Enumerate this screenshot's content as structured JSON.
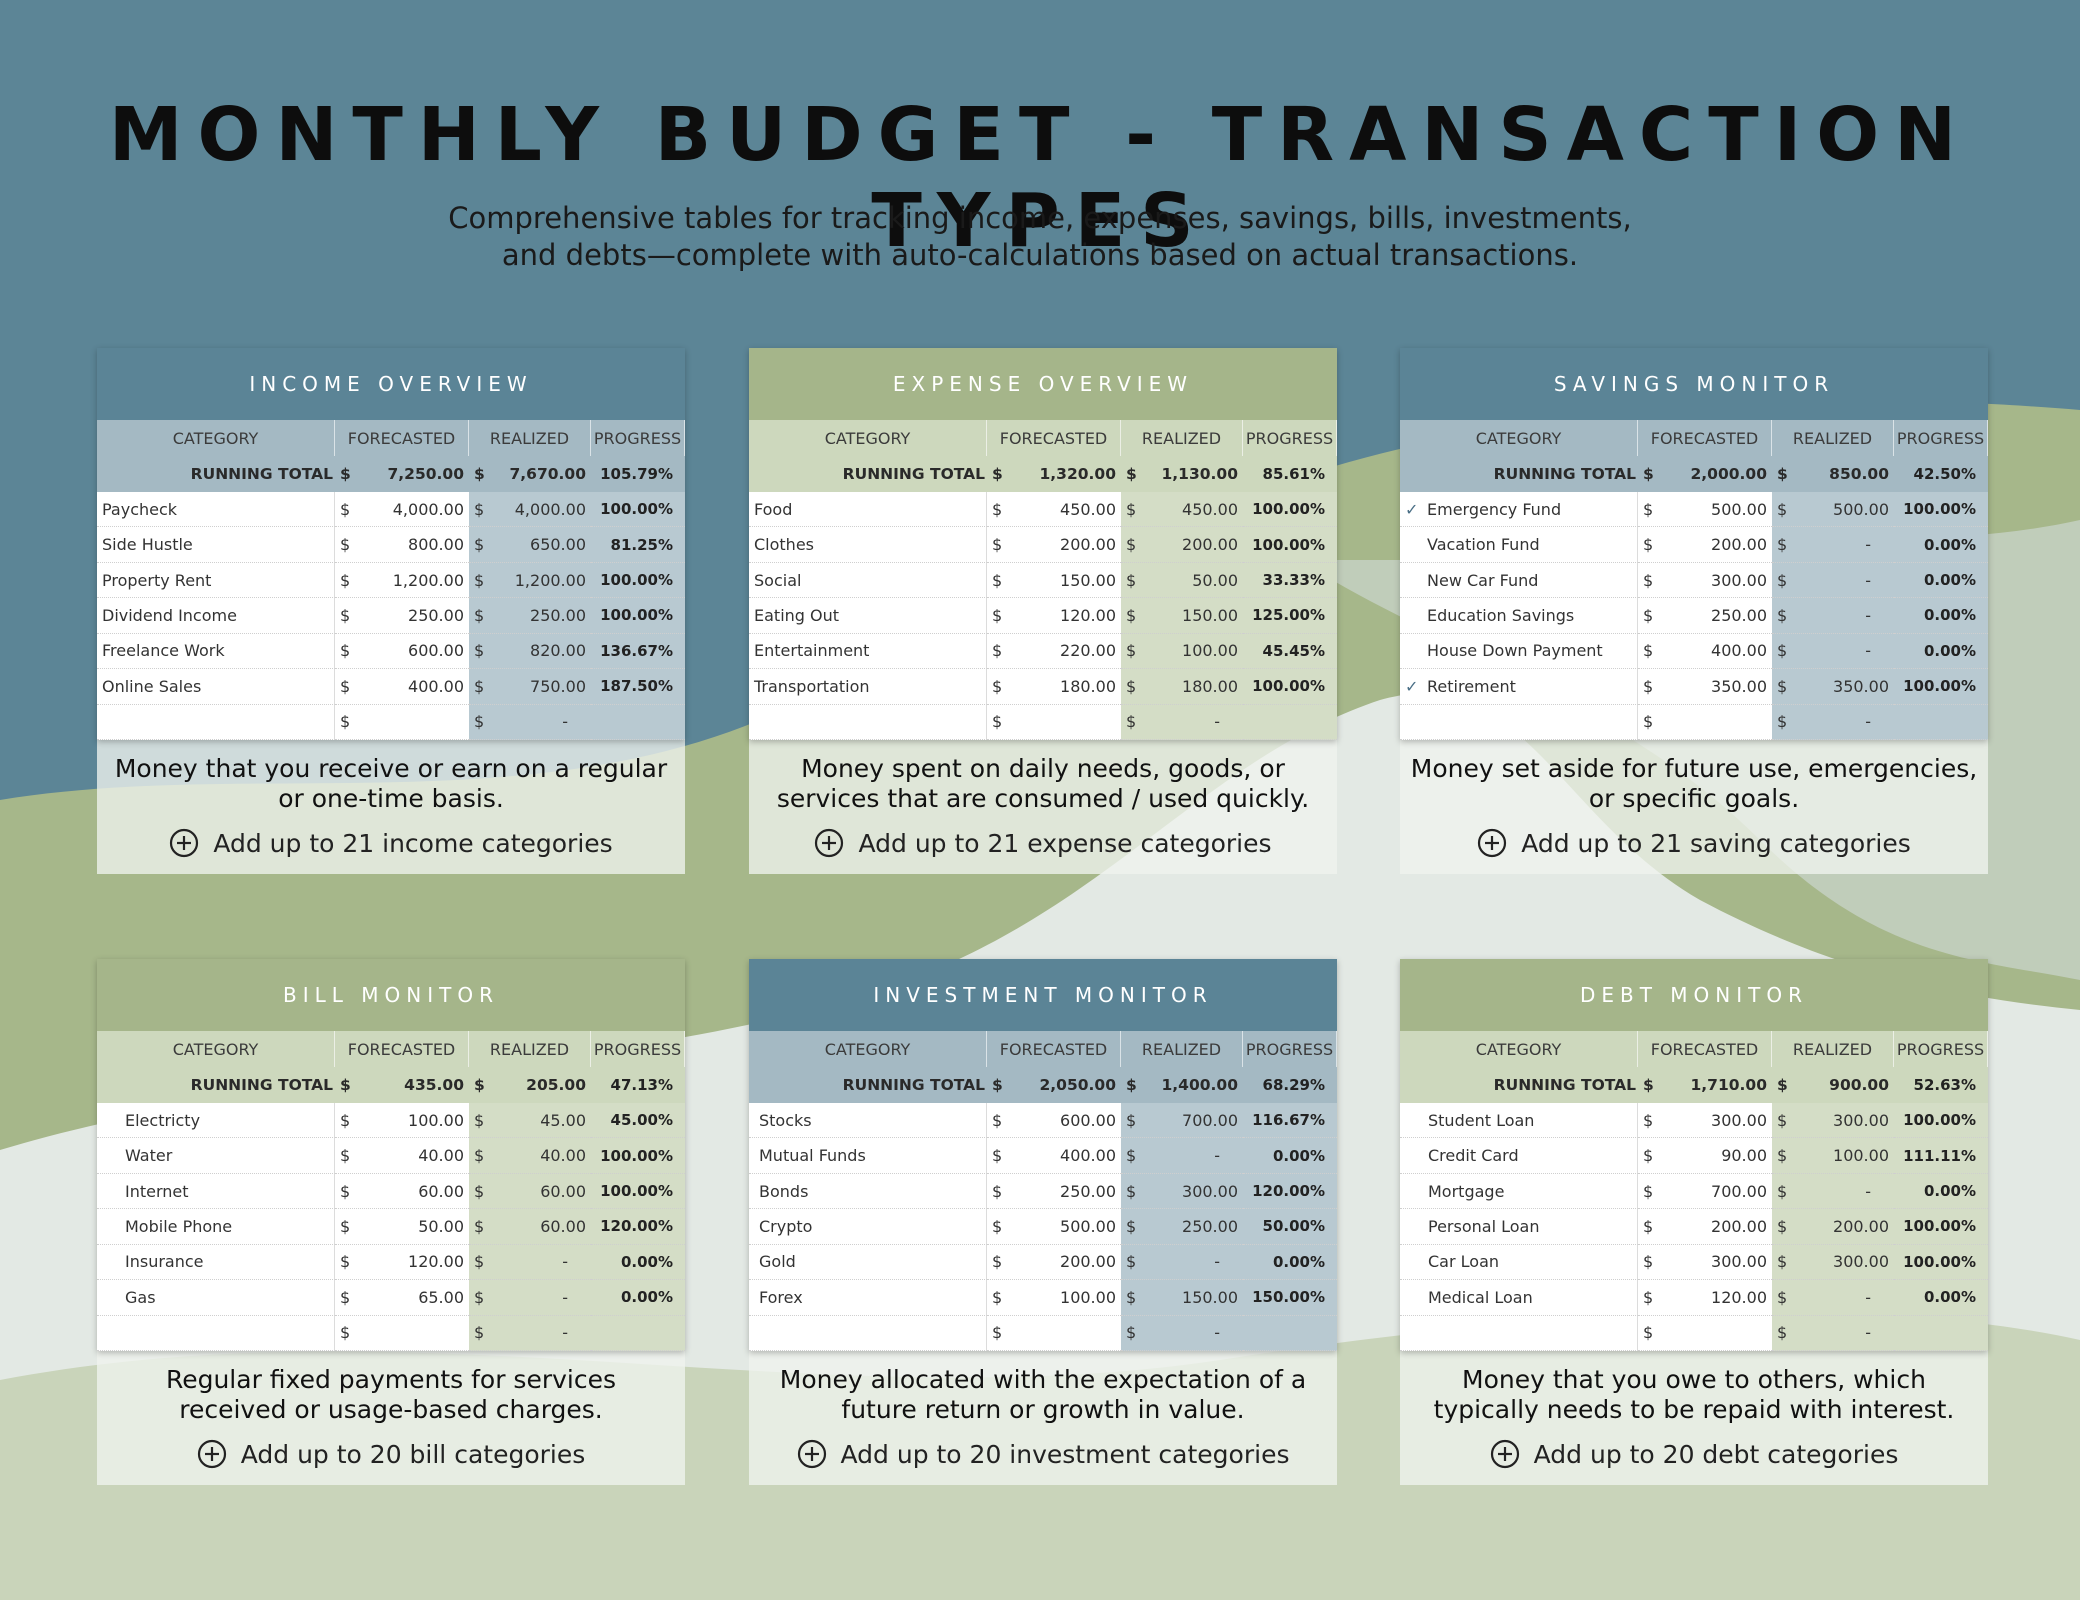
{
  "title": "MONTHLY BUDGET - TRANSACTION TYPES",
  "subtitle": [
    "Comprehensive tables for tracking income, expenses, savings, bills, investments,",
    "and debts—complete with auto-calculations based on actual transactions."
  ],
  "colors": {
    "background_top": "#5c8596",
    "green_wave": "#a6b78a",
    "light_wave": "#dfe5dc",
    "blue_header": "#5b8496",
    "green_header": "#a5b58a"
  },
  "headers": [
    "CATEGORY",
    "FORECASTED",
    "REALIZED",
    "PROGRESS"
  ],
  "running_total_label": "RUNNING TOTAL",
  "currency": "$",
  "empty_realized": "-",
  "add_icon": "circle-plus-icon",
  "check_icon": "check-icon",
  "panels": [
    {
      "id": "income",
      "theme": "blue",
      "title": "INCOME OVERVIEW",
      "total": {
        "forecasted": "7,250.00",
        "realized": "7,670.00",
        "progress": "105.79%"
      },
      "rows": [
        {
          "category": "Paycheck",
          "forecasted": "4,000.00",
          "realized": "4,000.00",
          "progress": "100.00%"
        },
        {
          "category": "Side Hustle",
          "forecasted": "800.00",
          "realized": "650.00",
          "progress": "81.25%"
        },
        {
          "category": "Property Rent",
          "forecasted": "1,200.00",
          "realized": "1,200.00",
          "progress": "100.00%"
        },
        {
          "category": "Dividend Income",
          "forecasted": "250.00",
          "realized": "250.00",
          "progress": "100.00%"
        },
        {
          "category": "Freelance Work",
          "forecasted": "600.00",
          "realized": "820.00",
          "progress": "136.67%"
        },
        {
          "category": "Online Sales",
          "forecasted": "400.00",
          "realized": "750.00",
          "progress": "187.50%"
        }
      ],
      "description": [
        "Money that you receive or earn on a regular",
        "or one-time basis."
      ],
      "add_label": "Add up to 21 income categories"
    },
    {
      "id": "expense",
      "theme": "green",
      "title": "EXPENSE OVERVIEW",
      "total": {
        "forecasted": "1,320.00",
        "realized": "1,130.00",
        "progress": "85.61%"
      },
      "rows": [
        {
          "category": "Food",
          "forecasted": "450.00",
          "realized": "450.00",
          "progress": "100.00%"
        },
        {
          "category": "Clothes",
          "forecasted": "200.00",
          "realized": "200.00",
          "progress": "100.00%"
        },
        {
          "category": "Social",
          "forecasted": "150.00",
          "realized": "50.00",
          "progress": "33.33%"
        },
        {
          "category": "Eating Out",
          "forecasted": "120.00",
          "realized": "150.00",
          "progress": "125.00%"
        },
        {
          "category": "Entertainment",
          "forecasted": "220.00",
          "realized": "100.00",
          "progress": "45.45%"
        },
        {
          "category": "Transportation",
          "forecasted": "180.00",
          "realized": "180.00",
          "progress": "100.00%"
        }
      ],
      "description": [
        "Money spent on daily needs, goods, or",
        "services that are consumed / used quickly."
      ],
      "add_label": "Add up to 21 expense categories"
    },
    {
      "id": "savings",
      "theme": "blue",
      "title": "SAVINGS MONITOR",
      "checkbox": true,
      "total": {
        "forecasted": "2,000.00",
        "realized": "850.00",
        "progress": "42.50%"
      },
      "rows": [
        {
          "category": "Emergency Fund",
          "forecasted": "500.00",
          "realized": "500.00",
          "progress": "100.00%",
          "checked": true
        },
        {
          "category": "Vacation Fund",
          "forecasted": "200.00",
          "realized": "-",
          "progress": "0.00%"
        },
        {
          "category": "New Car Fund",
          "forecasted": "300.00",
          "realized": "-",
          "progress": "0.00%"
        },
        {
          "category": "Education Savings",
          "forecasted": "250.00",
          "realized": "-",
          "progress": "0.00%"
        },
        {
          "category": "House Down Payment",
          "forecasted": "400.00",
          "realized": "-",
          "progress": "0.00%"
        },
        {
          "category": "Retirement",
          "forecasted": "350.00",
          "realized": "350.00",
          "progress": "100.00%",
          "checked": true
        }
      ],
      "description": [
        "Money set aside for future use, emergencies,",
        "or specific goals."
      ],
      "add_label": "Add up to 21 saving categories"
    },
    {
      "id": "bill",
      "theme": "green",
      "title": "BILL MONITOR",
      "indent": 2,
      "total": {
        "forecasted": "435.00",
        "realized": "205.00",
        "progress": "47.13%"
      },
      "rows": [
        {
          "category": "Electricty",
          "forecasted": "100.00",
          "realized": "45.00",
          "progress": "45.00%"
        },
        {
          "category": "Water",
          "forecasted": "40.00",
          "realized": "40.00",
          "progress": "100.00%"
        },
        {
          "category": "Internet",
          "forecasted": "60.00",
          "realized": "60.00",
          "progress": "100.00%"
        },
        {
          "category": "Mobile Phone",
          "forecasted": "50.00",
          "realized": "60.00",
          "progress": "120.00%"
        },
        {
          "category": "Insurance",
          "forecasted": "120.00",
          "realized": "-",
          "progress": "0.00%"
        },
        {
          "category": "Gas",
          "forecasted": "65.00",
          "realized": "-",
          "progress": "0.00%"
        }
      ],
      "description": [
        "Regular fixed payments for services",
        "received or usage-based charges."
      ],
      "add_label": "Add up to 20 bill categories"
    },
    {
      "id": "investment",
      "theme": "blue",
      "title": "INVESTMENT MONITOR",
      "indent": 1,
      "total": {
        "forecasted": "2,050.00",
        "realized": "1,400.00",
        "progress": "68.29%"
      },
      "rows": [
        {
          "category": "Stocks",
          "forecasted": "600.00",
          "realized": "700.00",
          "progress": "116.67%"
        },
        {
          "category": "Mutual Funds",
          "forecasted": "400.00",
          "realized": "-",
          "progress": "0.00%"
        },
        {
          "category": "Bonds",
          "forecasted": "250.00",
          "realized": "300.00",
          "progress": "120.00%"
        },
        {
          "category": "Crypto",
          "forecasted": "500.00",
          "realized": "250.00",
          "progress": "50.00%"
        },
        {
          "category": "Gold",
          "forecasted": "200.00",
          "realized": "-",
          "progress": "0.00%"
        },
        {
          "category": "Forex",
          "forecasted": "100.00",
          "realized": "150.00",
          "progress": "150.00%"
        }
      ],
      "description": [
        "Money allocated with the expectation of a",
        "future return or growth in value."
      ],
      "add_label": "Add up to 20 investment categories"
    },
    {
      "id": "debt",
      "theme": "green",
      "title": "DEBT MONITOR",
      "indent": 2,
      "total": {
        "forecasted": "1,710.00",
        "realized": "900.00",
        "progress": "52.63%"
      },
      "rows": [
        {
          "category": "Student Loan",
          "forecasted": "300.00",
          "realized": "300.00",
          "progress": "100.00%"
        },
        {
          "category": "Credit Card",
          "forecasted": "90.00",
          "realized": "100.00",
          "progress": "111.11%"
        },
        {
          "category": "Mortgage",
          "forecasted": "700.00",
          "realized": "-",
          "progress": "0.00%"
        },
        {
          "category": "Personal Loan",
          "forecasted": "200.00",
          "realized": "200.00",
          "progress": "100.00%"
        },
        {
          "category": "Car Loan",
          "forecasted": "300.00",
          "realized": "300.00",
          "progress": "100.00%"
        },
        {
          "category": "Medical Loan",
          "forecasted": "120.00",
          "realized": "-",
          "progress": "0.00%"
        }
      ],
      "description": [
        "Money that you owe to others, which",
        "typically needs to be repaid with interest."
      ],
      "add_label": "Add up to 20 debt categories"
    }
  ]
}
